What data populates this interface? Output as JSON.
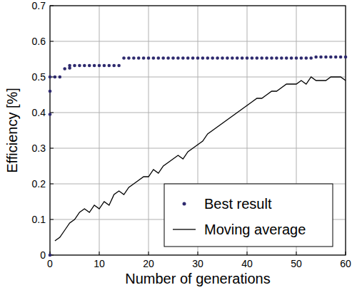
{
  "chart_data": {
    "type": "scatter",
    "x_label": "Number of generations",
    "y_label": "Efficiency [%]",
    "xlim": [
      0,
      60
    ],
    "ylim": [
      0,
      0.7
    ],
    "xticks": [
      0,
      10,
      20,
      30,
      40,
      50,
      60
    ],
    "yticks": [
      0,
      0.1,
      0.2,
      0.3,
      0.4,
      0.5,
      0.6,
      0.7
    ],
    "grid": true,
    "legend": "lower right",
    "series": [
      {
        "name": "Best result",
        "type": "scatter",
        "marker": "circle",
        "color": "#2e2a6e",
        "x": [
          0,
          0,
          0,
          0,
          1,
          2,
          3,
          4,
          4,
          5,
          6,
          7,
          8,
          9,
          10,
          11,
          12,
          13,
          14,
          15,
          16,
          17,
          18,
          19,
          20,
          21,
          22,
          23,
          24,
          25,
          26,
          27,
          28,
          29,
          30,
          31,
          32,
          33,
          34,
          35,
          36,
          37,
          38,
          39,
          40,
          41,
          42,
          43,
          44,
          45,
          46,
          47,
          48,
          49,
          50,
          51,
          52,
          53,
          54,
          55,
          56,
          57,
          58,
          59,
          60
        ],
        "values": [
          0,
          0.395,
          0.46,
          0.5,
          0.5,
          0.5,
          0.523,
          0.525,
          0.532,
          0.532,
          0.532,
          0.532,
          0.532,
          0.532,
          0.532,
          0.532,
          0.532,
          0.532,
          0.532,
          0.553,
          0.553,
          0.553,
          0.553,
          0.553,
          0.553,
          0.553,
          0.553,
          0.553,
          0.553,
          0.553,
          0.553,
          0.553,
          0.553,
          0.553,
          0.553,
          0.553,
          0.553,
          0.553,
          0.553,
          0.553,
          0.553,
          0.553,
          0.553,
          0.553,
          0.553,
          0.553,
          0.553,
          0.553,
          0.553,
          0.553,
          0.553,
          0.553,
          0.553,
          0.553,
          0.553,
          0.553,
          0.553,
          0.553,
          0.556,
          0.556,
          0.556,
          0.556,
          0.556,
          0.556,
          0.556
        ]
      },
      {
        "name": "Moving average",
        "type": "line",
        "line_style": "solid",
        "color": "#000000",
        "x": [
          1,
          2,
          3,
          4,
          5,
          6,
          7,
          8,
          9,
          10,
          11,
          12,
          13,
          14,
          15,
          16,
          17,
          18,
          19,
          20,
          21,
          22,
          23,
          24,
          25,
          26,
          27,
          28,
          29,
          30,
          31,
          32,
          33,
          34,
          35,
          36,
          37,
          38,
          39,
          40,
          41,
          42,
          43,
          44,
          45,
          46,
          47,
          48,
          49,
          50,
          51,
          52,
          53,
          54,
          55,
          56,
          57,
          58,
          59,
          60
        ],
        "values": [
          0.04,
          0.05,
          0.07,
          0.09,
          0.1,
          0.12,
          0.13,
          0.12,
          0.14,
          0.13,
          0.15,
          0.14,
          0.17,
          0.18,
          0.17,
          0.19,
          0.2,
          0.21,
          0.22,
          0.22,
          0.24,
          0.23,
          0.25,
          0.26,
          0.27,
          0.28,
          0.27,
          0.29,
          0.3,
          0.31,
          0.32,
          0.34,
          0.35,
          0.36,
          0.37,
          0.38,
          0.39,
          0.4,
          0.41,
          0.42,
          0.43,
          0.44,
          0.44,
          0.45,
          0.46,
          0.46,
          0.47,
          0.48,
          0.48,
          0.48,
          0.49,
          0.48,
          0.5,
          0.49,
          0.49,
          0.49,
          0.5,
          0.5,
          0.5,
          0.49
        ]
      }
    ]
  }
}
